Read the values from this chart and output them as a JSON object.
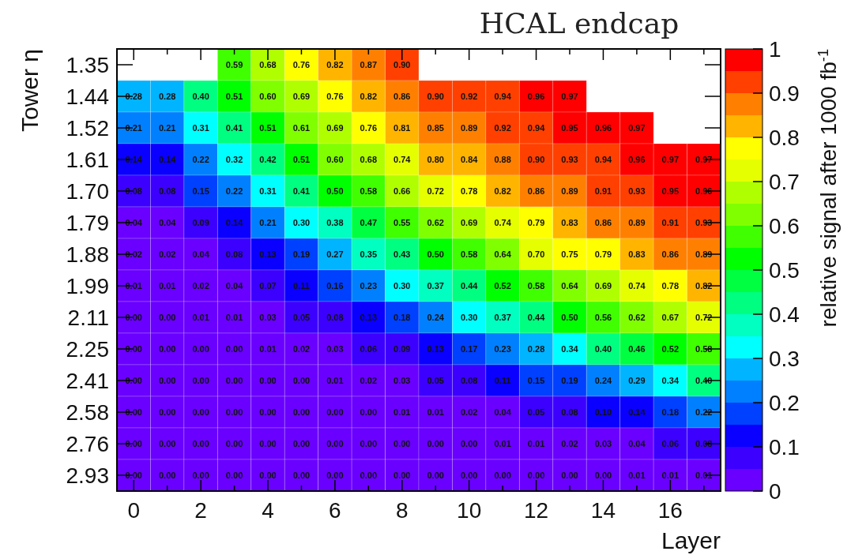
{
  "chart_data": {
    "type": "heatmap",
    "title": "HCAL endcap",
    "xlabel": "Layer",
    "ylabel": "Tower η",
    "clabel": "relative signal after 1000 fb$^{-1}$",
    "categories": [
      "0",
      null,
      "2",
      null,
      "4",
      null,
      "6",
      null,
      "8",
      null,
      "10",
      null,
      "12",
      null,
      "14",
      null,
      "16",
      null
    ],
    "y_categories": [
      "1.35",
      "1.44",
      "1.52",
      "1.61",
      "1.70",
      "1.79",
      "1.88",
      "1.99",
      "2.11",
      "2.25",
      "2.41",
      "2.58",
      "2.76",
      "2.93"
    ],
    "cells": [
      [
        null,
        null,
        null,
        0.59,
        0.68,
        0.76,
        0.82,
        0.87,
        0.9,
        null,
        null,
        null,
        null,
        null,
        null,
        null,
        null,
        null
      ],
      [
        0.28,
        0.28,
        0.4,
        0.51,
        0.6,
        0.69,
        0.76,
        0.82,
        0.86,
        0.9,
        0.92,
        0.94,
        0.96,
        0.97,
        null,
        null,
        null,
        null
      ],
      [
        0.21,
        0.21,
        0.31,
        0.41,
        0.51,
        0.61,
        0.69,
        0.76,
        0.81,
        0.85,
        0.89,
        0.92,
        0.94,
        0.95,
        0.96,
        0.97,
        null,
        null
      ],
      [
        0.14,
        0.14,
        0.22,
        0.32,
        0.42,
        0.51,
        0.6,
        0.68,
        0.74,
        0.8,
        0.84,
        0.88,
        0.9,
        0.93,
        0.94,
        0.96,
        0.97,
        0.97
      ],
      [
        0.08,
        0.08,
        0.15,
        0.22,
        0.31,
        0.41,
        0.5,
        0.58,
        0.66,
        0.72,
        0.78,
        0.82,
        0.86,
        0.89,
        0.91,
        0.93,
        0.95,
        0.96
      ],
      [
        0.04,
        0.04,
        0.09,
        0.14,
        0.21,
        0.3,
        0.38,
        0.47,
        0.55,
        0.62,
        0.69,
        0.74,
        0.79,
        0.83,
        0.86,
        0.89,
        0.91,
        0.93
      ],
      [
        0.02,
        0.02,
        0.04,
        0.08,
        0.13,
        0.19,
        0.27,
        0.35,
        0.43,
        0.5,
        0.58,
        0.64,
        0.7,
        0.75,
        0.79,
        0.83,
        0.86,
        0.89
      ],
      [
        0.01,
        0.01,
        0.02,
        0.04,
        0.07,
        0.11,
        0.16,
        0.23,
        0.3,
        0.37,
        0.44,
        0.52,
        0.58,
        0.64,
        0.69,
        0.74,
        0.78,
        0.82
      ],
      [
        0.0,
        0.0,
        0.01,
        0.01,
        0.03,
        0.05,
        0.08,
        0.13,
        0.18,
        0.24,
        0.3,
        0.37,
        0.44,
        0.5,
        0.56,
        0.62,
        0.67,
        0.72
      ],
      [
        0.0,
        0.0,
        0.0,
        0.0,
        0.01,
        0.02,
        0.03,
        0.06,
        0.09,
        0.13,
        0.17,
        0.23,
        0.28,
        0.34,
        0.4,
        0.46,
        0.52,
        0.58
      ],
      [
        0.0,
        0.0,
        0.0,
        0.0,
        0.0,
        0.0,
        0.01,
        0.02,
        0.03,
        0.05,
        0.08,
        0.11,
        0.15,
        0.19,
        0.24,
        0.29,
        0.34,
        0.4
      ],
      [
        0.0,
        0.0,
        0.0,
        0.0,
        0.0,
        0.0,
        0.0,
        0.0,
        0.01,
        0.01,
        0.02,
        0.04,
        0.05,
        0.08,
        0.1,
        0.14,
        0.18,
        0.22
      ],
      [
        0.0,
        0.0,
        0.0,
        0.0,
        0.0,
        0.0,
        0.0,
        0.0,
        0.0,
        0.0,
        0.0,
        0.01,
        0.01,
        0.02,
        0.03,
        0.04,
        0.06,
        0.08
      ],
      [
        0.0,
        0.0,
        0.0,
        0.0,
        0.0,
        0.0,
        0.0,
        0.0,
        0.0,
        0.0,
        0.0,
        0.0,
        0.0,
        0.0,
        0.0,
        0.01,
        0.01,
        0.01
      ]
    ],
    "clim": [
      0,
      1
    ],
    "cticks": [
      0,
      0.1,
      0.2,
      0.3,
      0.4,
      0.5,
      0.6,
      0.7,
      0.8,
      0.9,
      1
    ],
    "colors": [
      "#6a00ff",
      "#3c00ff",
      "#0a00ff",
      "#0040ff",
      "#0080ff",
      "#00b4ff",
      "#00ffff",
      "#00ffc0",
      "#00ff80",
      "#00ff40",
      "#00ff00",
      "#40ff00",
      "#80ff00",
      "#b0ff00",
      "#e6ff00",
      "#ffff00",
      "#ffb400",
      "#ff8000",
      "#ff4000",
      "#ff0000"
    ],
    "cell_labels": [
      [
        null,
        null,
        null,
        "0.59",
        "0.68",
        "0.76",
        "0.82",
        "0.87",
        "0.90",
        null,
        null,
        null,
        null,
        null,
        null,
        null,
        null,
        null
      ],
      [
        "0.28",
        "0.28",
        "0.40",
        "0.51",
        "0.60",
        "0.69",
        "0.76",
        "0.82",
        "0.86",
        "0.90",
        "0.92",
        "0.94",
        "0.96",
        "0.97",
        null,
        null,
        null,
        null
      ],
      [
        "0.21",
        "0.21",
        "0.31",
        "0.41",
        "0.51",
        "0.61",
        "0.69",
        "0.76",
        "0.81",
        "0.85",
        "0.89",
        "0.92",
        "0.94",
        "0.95",
        "0.96",
        "0.97",
        null,
        null
      ],
      [
        "0.14",
        "0.14",
        "0.22",
        "0.32",
        "0.42",
        "0.51",
        "0.60",
        "0.68",
        "0.74",
        "0.80",
        "0.84",
        "0.88",
        "0.90",
        "0.93",
        "0.94",
        "0.96",
        "0.97",
        "0.97"
      ],
      [
        "0.08",
        "0.08",
        "0.15",
        "0.22",
        "0.31",
        "0.41",
        "0.50",
        "0.58",
        "0.66",
        "0.72",
        "0.78",
        "0.82",
        "0.86",
        "0.89",
        "0.91",
        "0.93",
        "0.95",
        "0.96"
      ],
      [
        "0.04",
        "0.04",
        "0.09",
        "0.14",
        "0.21",
        "0.30",
        "0.38",
        "0.47",
        "0.55",
        "0.62",
        "0.69",
        "0.74",
        "0.79",
        "0.83",
        "0.86",
        "0.89",
        "0.91",
        "0.93"
      ],
      [
        "0.02",
        "0.02",
        "0.04",
        "0.08",
        "0.13",
        "0.19",
        "0.27",
        "0.35",
        "0.43",
        "0.50",
        "0.58",
        "0.64",
        "0.70",
        "0.75",
        "0.79",
        "0.83",
        "0.86",
        "0.89"
      ],
      [
        "0.01",
        "0.01",
        "0.02",
        "0.04",
        "0.07",
        "0.11",
        "0.16",
        "0.23",
        "0.30",
        "0.37",
        "0.44",
        "0.52",
        "0.58",
        "0.64",
        "0.69",
        "0.74",
        "0.78",
        "0.82"
      ],
      [
        "0.00",
        "0.00",
        "0.01",
        "0.01",
        "0.03",
        "0.05",
        "0.08",
        "0.13",
        "0.18",
        "0.24",
        "0.30",
        "0.37",
        "0.44",
        "0.50",
        "0.56",
        "0.62",
        "0.67",
        "0.72"
      ],
      [
        "0.00",
        "0.00",
        "0.00",
        "0.00",
        "0.01",
        "0.02",
        "0.03",
        "0.06",
        "0.09",
        "0.13",
        "0.17",
        "0.23",
        "0.28",
        "0.34",
        "0.40",
        "0.46",
        "0.52",
        "0.58"
      ],
      [
        "0.00",
        "0.00",
        "0.00",
        "0.00",
        "0.00",
        "0.00",
        "0.01",
        "0.02",
        "0.03",
        "0.05",
        "0.08",
        "0.11",
        "0.15",
        "0.19",
        "0.24",
        "0.29",
        "0.34",
        "0.40"
      ],
      [
        "0.00",
        "0.00",
        "0.00",
        "0.00",
        "0.00",
        "0.00",
        "0.00",
        "0.00",
        "0.01",
        "0.01",
        "0.02",
        "0.04",
        "0.05",
        "0.08",
        "0.10",
        "0.14",
        "0.18",
        "0.22"
      ],
      [
        "0.00",
        "0.00",
        "0.00",
        "0.00",
        "0.00",
        "0.00",
        "0.00",
        "0.00",
        "0.00",
        "0.00",
        "0.00",
        "0.01",
        "0.01",
        "0.02",
        "0.03",
        "0.04",
        "0.06",
        "0.08"
      ],
      [
        "0.00",
        "0.00",
        "0.00",
        "0.00",
        "0.00",
        "0.00",
        "0.00",
        "0.00",
        "0.00",
        "0.00",
        "0.00",
        "0.00",
        "0.00",
        "0.00",
        "0.00",
        "0.01",
        "0.01",
        "0.01"
      ]
    ]
  }
}
